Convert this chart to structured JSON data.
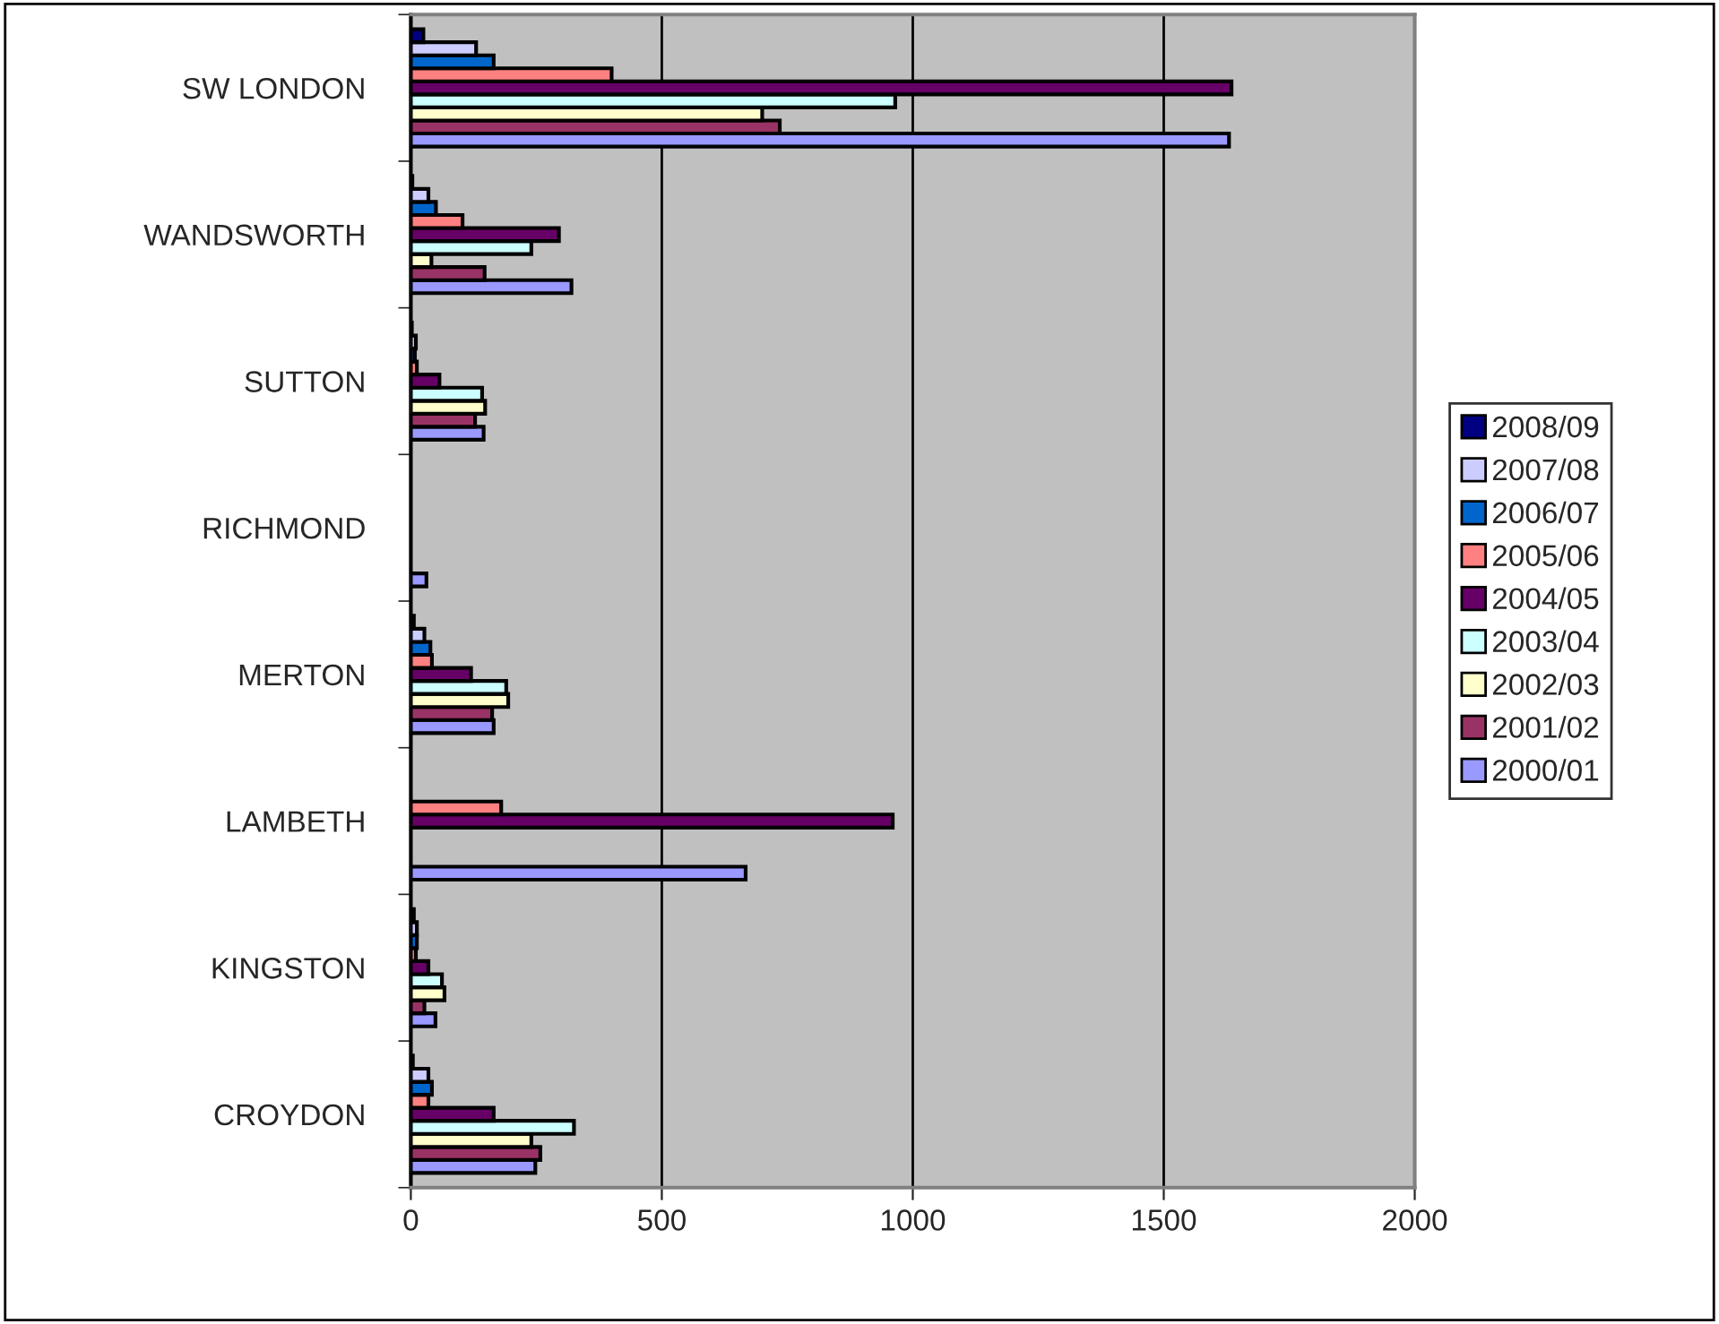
{
  "chart_data": {
    "type": "bar",
    "orientation": "horizontal",
    "categories": [
      "SW LONDON",
      "WANDSWORTH",
      "SUTTON",
      "RICHMOND",
      "MERTON",
      "LAMBETH",
      "KINGSTON",
      "CROYDON"
    ],
    "series": [
      {
        "name": "2000/01",
        "color": "#9999ff",
        "values": [
          1630,
          320,
          145,
          31,
          165,
          667,
          49,
          248
        ]
      },
      {
        "name": "2001/02",
        "color": "#993366",
        "values": [
          735,
          147,
          128,
          null,
          162,
          null,
          27,
          258
        ]
      },
      {
        "name": "2002/03",
        "color": "#ffffcc",
        "values": [
          700,
          41,
          148,
          null,
          194,
          null,
          67,
          240
        ]
      },
      {
        "name": "2003/04",
        "color": "#ccffff",
        "values": [
          965,
          240,
          142,
          null,
          190,
          null,
          62,
          325
        ]
      },
      {
        "name": "2004/05",
        "color": "#660066",
        "values": [
          1635,
          295,
          57,
          null,
          120,
          960,
          35,
          165
        ]
      },
      {
        "name": "2005/06",
        "color": "#ff8080",
        "values": [
          400,
          103,
          12,
          null,
          42,
          180,
          10,
          35
        ]
      },
      {
        "name": "2006/07",
        "color": "#0066cc",
        "values": [
          165,
          50,
          8,
          null,
          39,
          null,
          12,
          42
        ]
      },
      {
        "name": "2007/08",
        "color": "#ccccff",
        "values": [
          130,
          35,
          10,
          null,
          27,
          null,
          12,
          35
        ]
      },
      {
        "name": "2008/09",
        "color": "#000080",
        "values": [
          25,
          3,
          2,
          null,
          6,
          null,
          6,
          4
        ]
      }
    ],
    "xlim": [
      0,
      2000
    ],
    "xticks": [
      0,
      500,
      1000,
      1500,
      2000
    ],
    "grid": "x",
    "legend": "right"
  }
}
